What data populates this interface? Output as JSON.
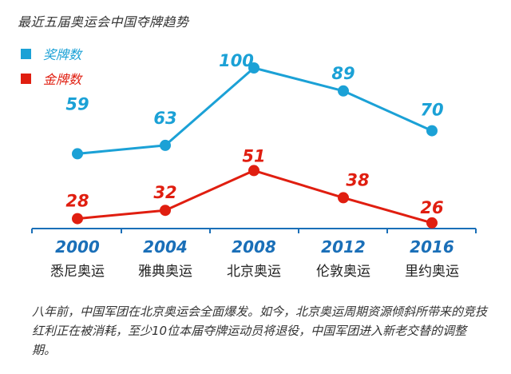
{
  "chart_data": {
    "type": "line",
    "title": "最近五届奥运会中国夺牌趋势",
    "categories": [
      "2000",
      "2004",
      "2008",
      "2012",
      "2016"
    ],
    "category_sublabels": [
      "悉尼奥运",
      "雅典奥运",
      "北京奥运",
      "伦敦奥运",
      "里约奥运"
    ],
    "series": [
      {
        "name": "奖牌数",
        "color": "#1ba1d6",
        "values": [
          59,
          63,
          100,
          89,
          70
        ]
      },
      {
        "name": "金牌数",
        "color": "#e01e10",
        "values": [
          28,
          32,
          51,
          38,
          26
        ]
      }
    ],
    "legend_position": "top-left",
    "grid": false,
    "axis_color": "#1a6fb8"
  },
  "caption": "八年前，中国军团在北京奥运会全面爆发。如今，北京奥运周期资源倾斜所带来的竞技红利正在被消耗，至少10位本届夺牌运动员将退役，中国军团进入新老交替的调整期。"
}
